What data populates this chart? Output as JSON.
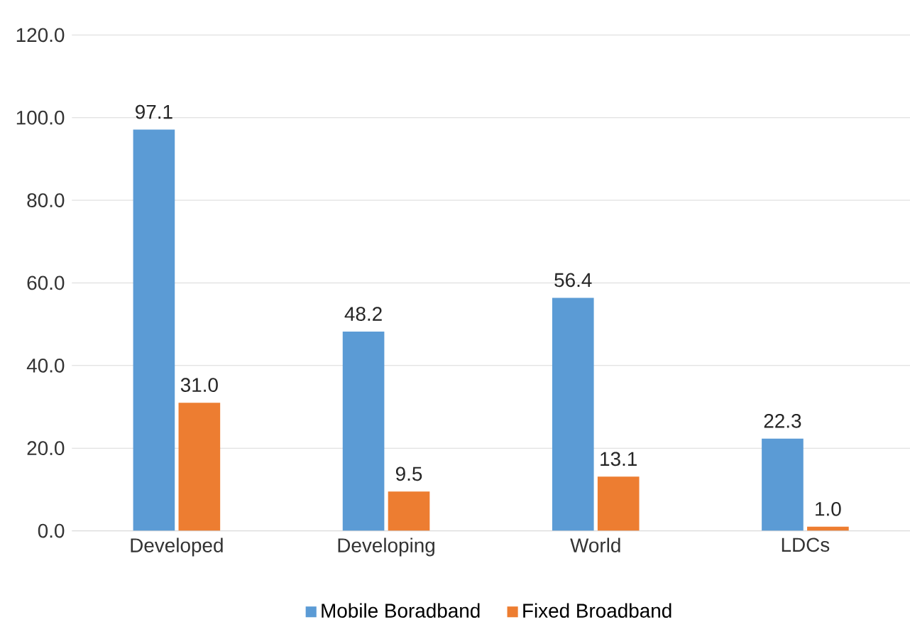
{
  "chart_data": {
    "type": "bar",
    "categories": [
      "Developed",
      "Developing",
      "World",
      "LDCs"
    ],
    "series": [
      {
        "name": "Mobile Boradband",
        "color": "#5b9bd5",
        "values": [
          97.1,
          48.2,
          56.4,
          22.3
        ],
        "value_labels": [
          "97.1",
          "48.2",
          "56.4",
          "22.3"
        ]
      },
      {
        "name": "Fixed Broadband",
        "color": "#ed7d31",
        "values": [
          31.0,
          9.5,
          13.1,
          1.0
        ],
        "value_labels": [
          "31.0",
          "9.5",
          "13.1",
          "1.0"
        ]
      }
    ],
    "ylim": [
      0,
      120
    ],
    "yticks": [
      {
        "value": 0,
        "label": "0.0"
      },
      {
        "value": 20,
        "label": "20.0"
      },
      {
        "value": 40,
        "label": "40.0"
      },
      {
        "value": 60,
        "label": "60.0"
      },
      {
        "value": 80,
        "label": "80.0"
      },
      {
        "value": 100,
        "label": "100.0"
      },
      {
        "value": 120,
        "label": "120.0"
      }
    ],
    "grid": "y",
    "legend": "bottom"
  }
}
